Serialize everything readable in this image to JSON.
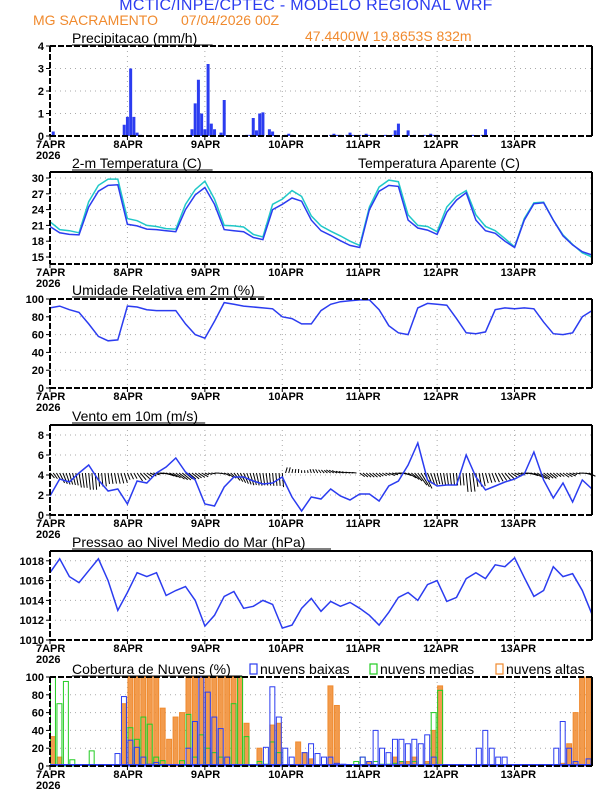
{
  "header": {
    "title": "MCTIC/INPE/CPTEC - MODELO REGIONAL WRF",
    "station": "MG SACRAMENTO",
    "run": "07/04/2026 00Z",
    "location": "47.4400W 19.8653S 832m"
  },
  "colors": {
    "blue": "#2b3cf0",
    "cyan": "#20c8c8",
    "green": "#22cc22",
    "orange": "#f08a2e",
    "black": "#000000",
    "grid": "#aaaaaa"
  },
  "x_axis": {
    "ticks": [
      "7APR",
      "8APR",
      "9APR",
      "10APR",
      "11APR",
      "12APR",
      "13APR"
    ],
    "year": "2026",
    "hours_range": [
      0,
      168
    ]
  },
  "chart_data": [
    {
      "type": "bar",
      "title": "Precipitacao (mm/h)",
      "ylim": [
        0,
        4
      ],
      "yticks": [
        "0",
        "1",
        "2",
        "3",
        "4"
      ],
      "x_hours": [
        1,
        23,
        24,
        25,
        26,
        27,
        28,
        44,
        45,
        46,
        47,
        48,
        49,
        50,
        51,
        53,
        54,
        61,
        62,
        63,
        64,
        65,
        66,
        68,
        69,
        73,
        74,
        75,
        87,
        88,
        89,
        90,
        92,
        93,
        94,
        96,
        98,
        99,
        104,
        106,
        107,
        108,
        111,
        113,
        116,
        118,
        119,
        120,
        131,
        134,
        135
      ],
      "values": [
        0.2,
        0.5,
        0.85,
        3.0,
        0.85,
        0.15,
        0.05,
        0.3,
        1.45,
        2.5,
        1.0,
        0.3,
        3.2,
        0.55,
        0.3,
        0.15,
        1.6,
        0.05,
        0.05,
        0.8,
        0.25,
        1.0,
        1.05,
        0.3,
        0.2,
        0.05,
        0.1,
        0.05,
        0.05,
        0.1,
        0.05,
        0.05,
        0.05,
        0.15,
        0.05,
        0.05,
        0.1,
        0.05,
        0.05,
        0.05,
        0.25,
        0.55,
        0.25,
        0.05,
        0.05,
        0.1,
        0.05,
        0.05,
        0.05,
        0.05,
        0.3
      ]
    },
    {
      "type": "line",
      "title": "2-m Temperatura (C)",
      "legend": "Temperatura Aparente (C)",
      "ylim": [
        15,
        30
      ],
      "yticks": [
        "15",
        "18",
        "21",
        "24",
        "27",
        "30"
      ],
      "x_hours": [
        0,
        3,
        6,
        9,
        12,
        15,
        18,
        21,
        24,
        27,
        30,
        33,
        36,
        39,
        42,
        45,
        48,
        51,
        54,
        57,
        60,
        63,
        66,
        69,
        72,
        75,
        78,
        81,
        84,
        87,
        90,
        93,
        96,
        99,
        102,
        105,
        108,
        111,
        114,
        117,
        120,
        123,
        126,
        129,
        132,
        135,
        138,
        141,
        144,
        147,
        150,
        153,
        156,
        159,
        162,
        165,
        168
      ],
      "series": [
        {
          "name": "2-m Temperatura",
          "values": [
            20.8,
            19.6,
            19.3,
            19.2,
            24.5,
            27.5,
            28.6,
            28.7,
            21.2,
            20.9,
            20.3,
            20.2,
            20.0,
            19.8,
            24.0,
            26.8,
            28.2,
            25.0,
            20.2,
            20.0,
            19.8,
            18.7,
            18.3,
            24.0,
            25.0,
            26.2,
            25.6,
            22.0,
            20.0,
            19.1,
            18.1,
            17.2,
            16.8,
            24.0,
            27.5,
            28.6,
            28.4,
            22.0,
            20.5,
            20.1,
            19.3,
            23.5,
            25.8,
            27.2,
            22.0,
            20.0,
            19.5,
            18.0,
            16.8,
            22.0,
            25.1,
            25.3,
            22.0,
            19.0,
            17.3,
            16.0,
            15.4
          ]
        },
        {
          "name": "Temperatura Aparente",
          "values": [
            21.7,
            20.2,
            20.0,
            19.6,
            25.5,
            28.6,
            29.8,
            29.8,
            22.3,
            21.9,
            21.0,
            20.8,
            20.4,
            20.3,
            25.0,
            27.8,
            29.4,
            26.0,
            21.0,
            20.9,
            20.7,
            19.3,
            18.8,
            25.0,
            26.0,
            27.6,
            26.5,
            22.8,
            20.9,
            19.9,
            19.0,
            18.0,
            17.2,
            24.5,
            28.3,
            29.6,
            29.3,
            23.0,
            21.0,
            20.8,
            19.8,
            24.5,
            26.5,
            27.6,
            23.0,
            20.8,
            20.0,
            18.5,
            16.9,
            22.3,
            25.3,
            25.4,
            22.0,
            19.2,
            17.4,
            15.8,
            15.0
          ]
        }
      ]
    },
    {
      "type": "line",
      "title": "Umidade Relativa em 2m (%)",
      "ylim": [
        0,
        100
      ],
      "yticks": [
        "0",
        "20",
        "40",
        "60",
        "80",
        "100"
      ],
      "x_hours": [
        0,
        3,
        6,
        9,
        12,
        15,
        18,
        21,
        24,
        27,
        30,
        33,
        36,
        39,
        42,
        45,
        48,
        51,
        54,
        57,
        60,
        63,
        66,
        69,
        72,
        75,
        78,
        81,
        84,
        87,
        90,
        93,
        96,
        99,
        102,
        105,
        108,
        111,
        114,
        117,
        120,
        123,
        126,
        129,
        132,
        135,
        138,
        141,
        144,
        147,
        150,
        153,
        156,
        159,
        162,
        165,
        168
      ],
      "values": [
        90,
        92,
        88,
        85,
        72,
        58,
        53,
        54,
        92,
        91,
        88,
        87,
        87,
        87,
        72,
        60,
        56,
        75,
        96,
        94,
        92,
        91,
        90,
        89,
        80,
        78,
        72,
        72,
        87,
        94,
        97,
        98,
        99,
        99,
        88,
        70,
        62,
        60,
        90,
        95,
        94,
        93,
        78,
        62,
        61,
        63,
        88,
        90,
        89,
        90,
        89,
        74,
        61,
        60,
        62,
        80,
        87
      ]
    },
    {
      "type": "line",
      "title": "Vento em 10m (m/s)",
      "ylim": [
        0,
        9
      ],
      "yticks": [
        "0",
        "2",
        "4",
        "6",
        "8"
      ],
      "x_hours": [
        0,
        3,
        6,
        9,
        12,
        15,
        18,
        21,
        24,
        27,
        30,
        33,
        36,
        39,
        42,
        45,
        48,
        51,
        54,
        57,
        60,
        63,
        66,
        69,
        72,
        75,
        78,
        81,
        84,
        87,
        90,
        93,
        96,
        99,
        102,
        105,
        108,
        111,
        114,
        117,
        120,
        123,
        126,
        129,
        132,
        135,
        138,
        141,
        144,
        147,
        150,
        153,
        156,
        159,
        162,
        165,
        168
      ],
      "values": [
        1.9,
        3.6,
        3.3,
        4.2,
        5.0,
        3.5,
        2.4,
        2.6,
        1.1,
        3.4,
        3.2,
        4.2,
        4.8,
        5.7,
        4.3,
        3.5,
        1.1,
        0.9,
        2.8,
        3.8,
        3.8,
        3.4,
        3.1,
        3.2,
        3.8,
        1.8,
        0.4,
        1.8,
        1.6,
        2.6,
        1.9,
        1.5,
        2.1,
        2.1,
        1.4,
        2.9,
        3.4,
        5.0,
        7.2,
        3.5,
        2.9,
        3.0,
        3.0,
        6.0,
        3.8,
        2.5,
        2.9,
        3.3,
        3.6,
        4.1,
        6.3,
        3.5,
        1.7,
        3.2,
        1.3,
        3.5,
        2.6
      ],
      "vector_baseline": 4.2
    },
    {
      "type": "line",
      "title": "Pressao ao Nivel Medio do Mar (hPa)",
      "ylim": [
        1010,
        1019
      ],
      "yticks": [
        "1010",
        "1012",
        "1014",
        "1016",
        "1018"
      ],
      "x_hours": [
        0,
        3,
        6,
        9,
        12,
        15,
        18,
        21,
        24,
        27,
        30,
        33,
        36,
        39,
        42,
        45,
        48,
        51,
        54,
        57,
        60,
        63,
        66,
        69,
        72,
        75,
        78,
        81,
        84,
        87,
        90,
        93,
        96,
        99,
        102,
        105,
        108,
        111,
        114,
        117,
        120,
        123,
        126,
        129,
        132,
        135,
        138,
        141,
        144,
        147,
        150,
        153,
        156,
        159,
        162,
        165,
        168
      ],
      "values": [
        1016.8,
        1018.2,
        1016.4,
        1015.8,
        1017.0,
        1018.2,
        1016.0,
        1013.0,
        1014.8,
        1016.8,
        1016.4,
        1016.8,
        1014.5,
        1015.0,
        1015.4,
        1014.0,
        1011.4,
        1012.5,
        1014.4,
        1014.9,
        1013.2,
        1013.4,
        1014.0,
        1013.6,
        1011.2,
        1011.5,
        1013.2,
        1014.2,
        1012.9,
        1013.9,
        1013.4,
        1013.8,
        1013.2,
        1012.5,
        1011.5,
        1012.8,
        1014.3,
        1014.8,
        1014.0,
        1015.6,
        1016.0,
        1013.9,
        1014.3,
        1016.2,
        1016.8,
        1016.2,
        1017.6,
        1017.4,
        1018.3,
        1016.3,
        1014.4,
        1015.0,
        1017.4,
        1016.4,
        1016.7,
        1015.0,
        1012.6
      ]
    },
    {
      "type": "bar",
      "title": "Cobertura de Nuvens (%)",
      "ylim": [
        0,
        100
      ],
      "yticks": [
        "0",
        "20",
        "40",
        "60",
        "80",
        "100"
      ],
      "legend": [
        "nuvens baixas",
        "nuvens medias",
        "nuvens altas"
      ],
      "x_hours": [
        0,
        2,
        4,
        6,
        8,
        10,
        12,
        14,
        16,
        18,
        20,
        22,
        24,
        26,
        28,
        30,
        32,
        34,
        36,
        38,
        40,
        42,
        44,
        46,
        48,
        50,
        52,
        54,
        56,
        58,
        60,
        62,
        64,
        66,
        68,
        70,
        72,
        74,
        76,
        78,
        80,
        82,
        84,
        86,
        88,
        90,
        92,
        94,
        96,
        98,
        100,
        102,
        104,
        106,
        108,
        110,
        112,
        114,
        116,
        118,
        120,
        122,
        124,
        126,
        128,
        130,
        132,
        134,
        136,
        138,
        140,
        142,
        144,
        146,
        148,
        150,
        152,
        154,
        156,
        158,
        160,
        162,
        164,
        166
      ],
      "series": [
        {
          "name": "nuvens baixas",
          "values": [
            0,
            0,
            0,
            0,
            0,
            0,
            0,
            0,
            0,
            0,
            14,
            78,
            29,
            21,
            10,
            2,
            4,
            0,
            0,
            0,
            0,
            20,
            50,
            100,
            83,
            55,
            42,
            10,
            1,
            0,
            0,
            0,
            0,
            21,
            89,
            55,
            20,
            10,
            0,
            15,
            25,
            14,
            10,
            10,
            3,
            2,
            0,
            0,
            10,
            5,
            40,
            20,
            15,
            30,
            30,
            25,
            30,
            25,
            35,
            10,
            0,
            0,
            0,
            0,
            0,
            0,
            20,
            40,
            20,
            10,
            10,
            0,
            0,
            0,
            0,
            0,
            0,
            0,
            20,
            50,
            20,
            5,
            0,
            8
          ]
        },
        {
          "name": "nuvens medias",
          "values": [
            100,
            70,
            95,
            7,
            0,
            0,
            17,
            0,
            0,
            0,
            0,
            0,
            43,
            30,
            55,
            47,
            10,
            6,
            0,
            0,
            6,
            58,
            10,
            35,
            20,
            15,
            10,
            0,
            70,
            100,
            33,
            0,
            5,
            2,
            27,
            15,
            0,
            0,
            0,
            0,
            0,
            0,
            0,
            0,
            0,
            0,
            0,
            5,
            10,
            0,
            5,
            2,
            2,
            3,
            5,
            0,
            5,
            0,
            2,
            60,
            85,
            0,
            0,
            0,
            0,
            0,
            0,
            0,
            0,
            0,
            0,
            0,
            0,
            0,
            0,
            0,
            0,
            0,
            0,
            0,
            0,
            0,
            0,
            0
          ]
        },
        {
          "name": "nuvens altas",
          "values": [
            33,
            10,
            0,
            0,
            0,
            0,
            0,
            0,
            0,
            0,
            0,
            70,
            100,
            100,
            100,
            100,
            100,
            65,
            30,
            55,
            60,
            100,
            100,
            100,
            100,
            100,
            100,
            100,
            100,
            100,
            48,
            0,
            20,
            0,
            46,
            48,
            0,
            0,
            27,
            15,
            8,
            0,
            0,
            90,
            68,
            0,
            0,
            0,
            0,
            5,
            0,
            0,
            0,
            10,
            5,
            5,
            10,
            0,
            5,
            40,
            90,
            0,
            0,
            0,
            0,
            0,
            0,
            0,
            0,
            0,
            0,
            0,
            0,
            0,
            0,
            0,
            0,
            0,
            0,
            3,
            25,
            60,
            100,
            100
          ]
        }
      ]
    }
  ]
}
